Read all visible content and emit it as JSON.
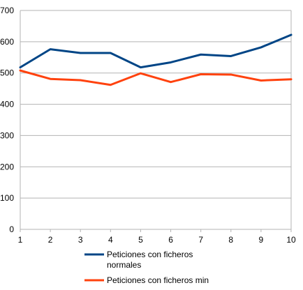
{
  "chart_data": {
    "type": "line",
    "x": [
      1,
      2,
      3,
      4,
      5,
      6,
      7,
      8,
      9,
      10
    ],
    "series": [
      {
        "name": "Peticiones con ficheros normales",
        "legend_lines": [
          "Peticiones con ficheros",
          "normales"
        ],
        "color": "#004586",
        "values": [
          518,
          576,
          564,
          564,
          518,
          534,
          559,
          554,
          582,
          622
        ]
      },
      {
        "name": "Peticiones con ficheros min",
        "legend_lines": [
          "Peticiones con ficheros min"
        ],
        "color": "#ff420e",
        "values": [
          508,
          481,
          477,
          462,
          499,
          471,
          496,
          495,
          476,
          480
        ]
      }
    ],
    "ylim": [
      0,
      700
    ],
    "yticks": [
      0,
      100,
      200,
      300,
      400,
      500,
      600,
      700
    ],
    "xticks": [
      1,
      2,
      3,
      4,
      5,
      6,
      7,
      8,
      9,
      10
    ],
    "grid": "horizontal",
    "legend_position": "bottom",
    "title": "",
    "xlabel": "",
    "ylabel": ""
  }
}
